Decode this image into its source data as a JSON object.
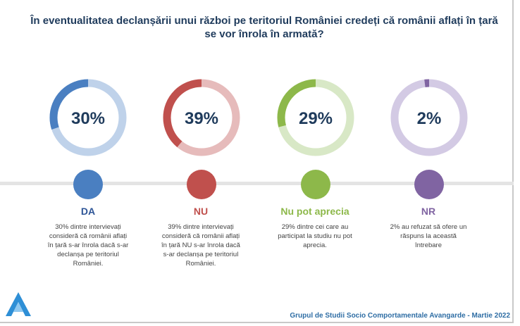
{
  "title": "În eventualitatea declanșării unui război pe teritoriul României credeți că românii aflați în țară se vor înrola în armată?",
  "chart_data": {
    "type": "pie",
    "categories": [
      "DA",
      "NU",
      "Nu pot aprecia",
      "NR"
    ],
    "values": [
      30,
      39,
      29,
      2
    ],
    "value_labels": [
      "30%",
      "39%",
      "29%",
      "2%"
    ],
    "colors": [
      "#4a7fc1",
      "#c0504d",
      "#8db84a",
      "#8064a2"
    ],
    "track_colors": [
      "#bfd2ea",
      "#e6bbbb",
      "#d8e8c6",
      "#d3cae4"
    ]
  },
  "items": [
    {
      "label": "DA",
      "value_label": "30%",
      "description": "30% dintre intervievați consideră că românii aflați în țară s-ar înrola dacă s-ar declanșa pe teritoriul României."
    },
    {
      "label": "NU",
      "value_label": "39%",
      "description": "39% dintre intervievați consideră că românii aflați în țară NU s-ar înrola dacă s-ar declanșa pe teritoriul României."
    },
    {
      "label": "Nu pot aprecia",
      "value_label": "29%",
      "description": "29% dintre cei care au participat la studiu nu pot aprecia."
    },
    {
      "label": "NR",
      "value_label": "2%",
      "description": "2% au refuzat să ofere un răspuns la această întrebare"
    }
  ],
  "footer": "Grupul de Studii Socio Comportamentale Avangarde   - Martie 2022",
  "logo_icon": "avangarde-logo-icon"
}
